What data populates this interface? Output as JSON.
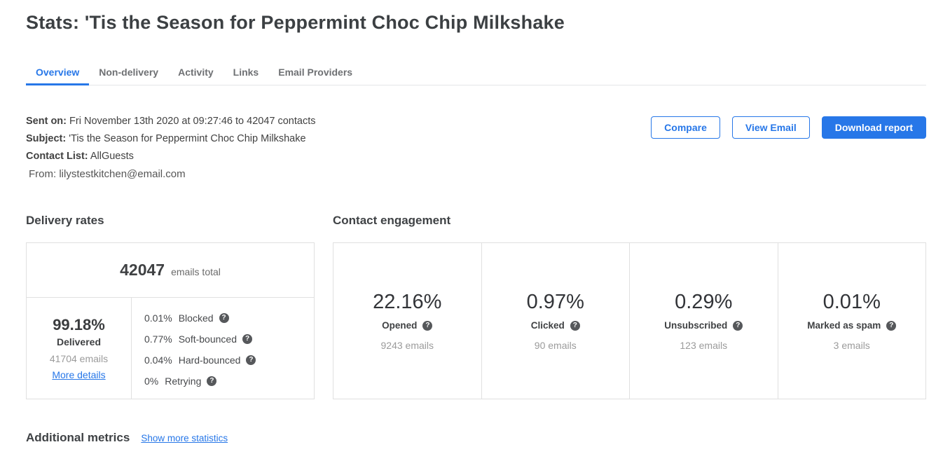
{
  "page": {
    "title": "Stats: 'Tis the Season for Peppermint Choc Chip Milkshake"
  },
  "tabs": [
    {
      "label": "Overview",
      "active": true
    },
    {
      "label": "Non-delivery",
      "active": false
    },
    {
      "label": "Activity",
      "active": false
    },
    {
      "label": "Links",
      "active": false
    },
    {
      "label": "Email Providers",
      "active": false
    }
  ],
  "meta": {
    "sent_on_label": "Sent on:",
    "sent_on_value": "Fri November 13th 2020 at 09:27:46 to 42047 contacts",
    "subject_label": "Subject:",
    "subject_value": "'Tis the Season for Peppermint Choc Chip Milkshake",
    "contact_list_label": "Contact List:",
    "contact_list_value": "AllGuests",
    "from_label": "From:",
    "from_value": "lilystestkitchen@email.com"
  },
  "actions": {
    "compare": "Compare",
    "view_email": "View Email",
    "download_report": "Download report"
  },
  "delivery": {
    "section_title": "Delivery rates",
    "total_value": "42047",
    "total_label": "emails total",
    "delivered_pct": "99.18%",
    "delivered_label": "Delivered",
    "delivered_emails": "41704 emails",
    "more_details_link": "More details",
    "breakdown": [
      {
        "pct": "0.01%",
        "label": "Blocked"
      },
      {
        "pct": "0.77%",
        "label": "Soft-bounced"
      },
      {
        "pct": "0.04%",
        "label": "Hard-bounced"
      },
      {
        "pct": "0%",
        "label": "Retrying"
      }
    ]
  },
  "engagement": {
    "section_title": "Contact engagement",
    "metrics": [
      {
        "pct": "22.16%",
        "label": "Opened",
        "emails": "9243 emails"
      },
      {
        "pct": "0.97%",
        "label": "Clicked",
        "emails": "90 emails"
      },
      {
        "pct": "0.29%",
        "label": "Unsubscribed",
        "emails": "123 emails"
      },
      {
        "pct": "0.01%",
        "label": "Marked as spam",
        "emails": "3 emails"
      }
    ]
  },
  "additional": {
    "section_title": "Additional metrics",
    "show_more_link": "Show more statistics"
  },
  "icons": {
    "help": "?"
  },
  "colors": {
    "accent_blue": "#2777e8",
    "card_border": "#e0e0e0",
    "dark_text": "#3f4143",
    "muted_text": "#9b9b9b",
    "help_icon_bg": "#56585b"
  }
}
